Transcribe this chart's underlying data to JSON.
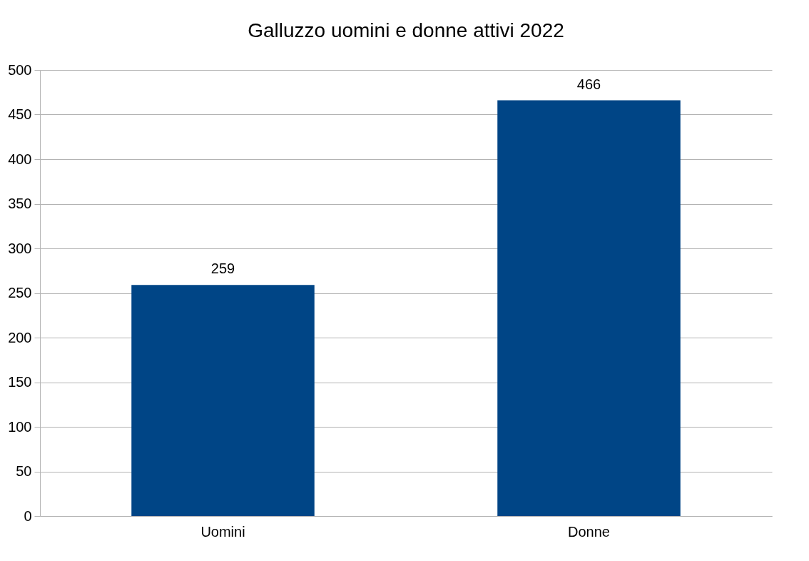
{
  "chart_data": {
    "type": "bar",
    "title": "Galluzzo uomini e donne attivi 2022",
    "categories": [
      "Uomini",
      "Donne"
    ],
    "values": [
      259,
      466
    ],
    "color": "#004586",
    "ylim": [
      0,
      500
    ],
    "yticks": [
      0,
      50,
      100,
      150,
      200,
      250,
      300,
      350,
      400,
      450,
      500
    ],
    "grid": "y",
    "data_labels": true
  }
}
